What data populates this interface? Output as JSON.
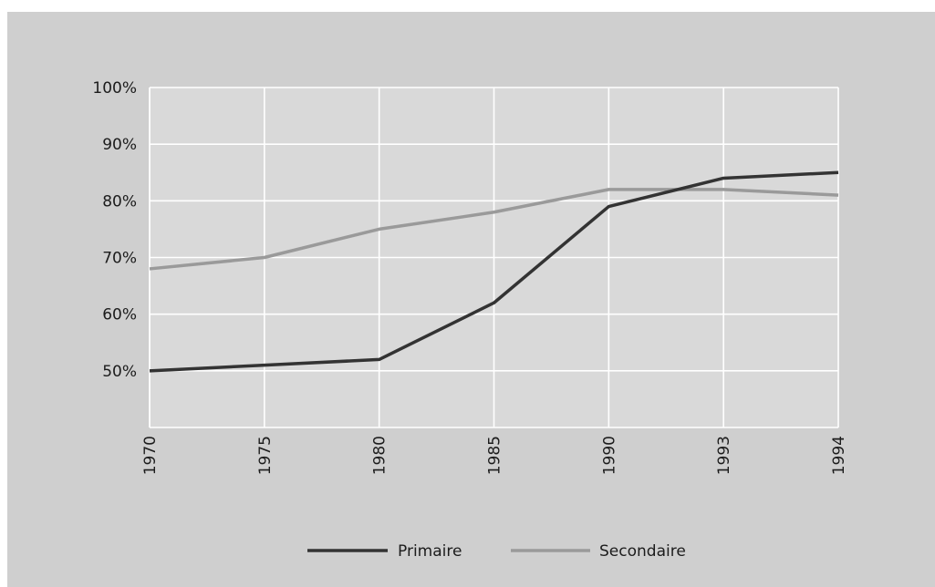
{
  "chart_data": {
    "type": "line",
    "categories": [
      "1970",
      "1975",
      "1980",
      "1985",
      "1990",
      "1993",
      "1994"
    ],
    "series": [
      {
        "name": "Primaire",
        "values": [
          50,
          51,
          52,
          62,
          79,
          84,
          85
        ],
        "color": "#333333"
      },
      {
        "name": "Secondaire",
        "values": [
          68,
          70,
          75,
          78,
          82,
          82,
          81
        ],
        "color": "#9a9a9a"
      }
    ],
    "ylim": [
      40,
      100
    ],
    "yticks": [
      50,
      60,
      70,
      80,
      90,
      100
    ],
    "ytick_labels": [
      "50%",
      "60%",
      "70%",
      "80%",
      "90%",
      "100%"
    ],
    "grid": true,
    "legend_position": "bottom-center",
    "colors": {
      "frame_background": "#cfcfcf",
      "plot_background": "#d9d9d9",
      "grid": "#ffffff"
    }
  }
}
